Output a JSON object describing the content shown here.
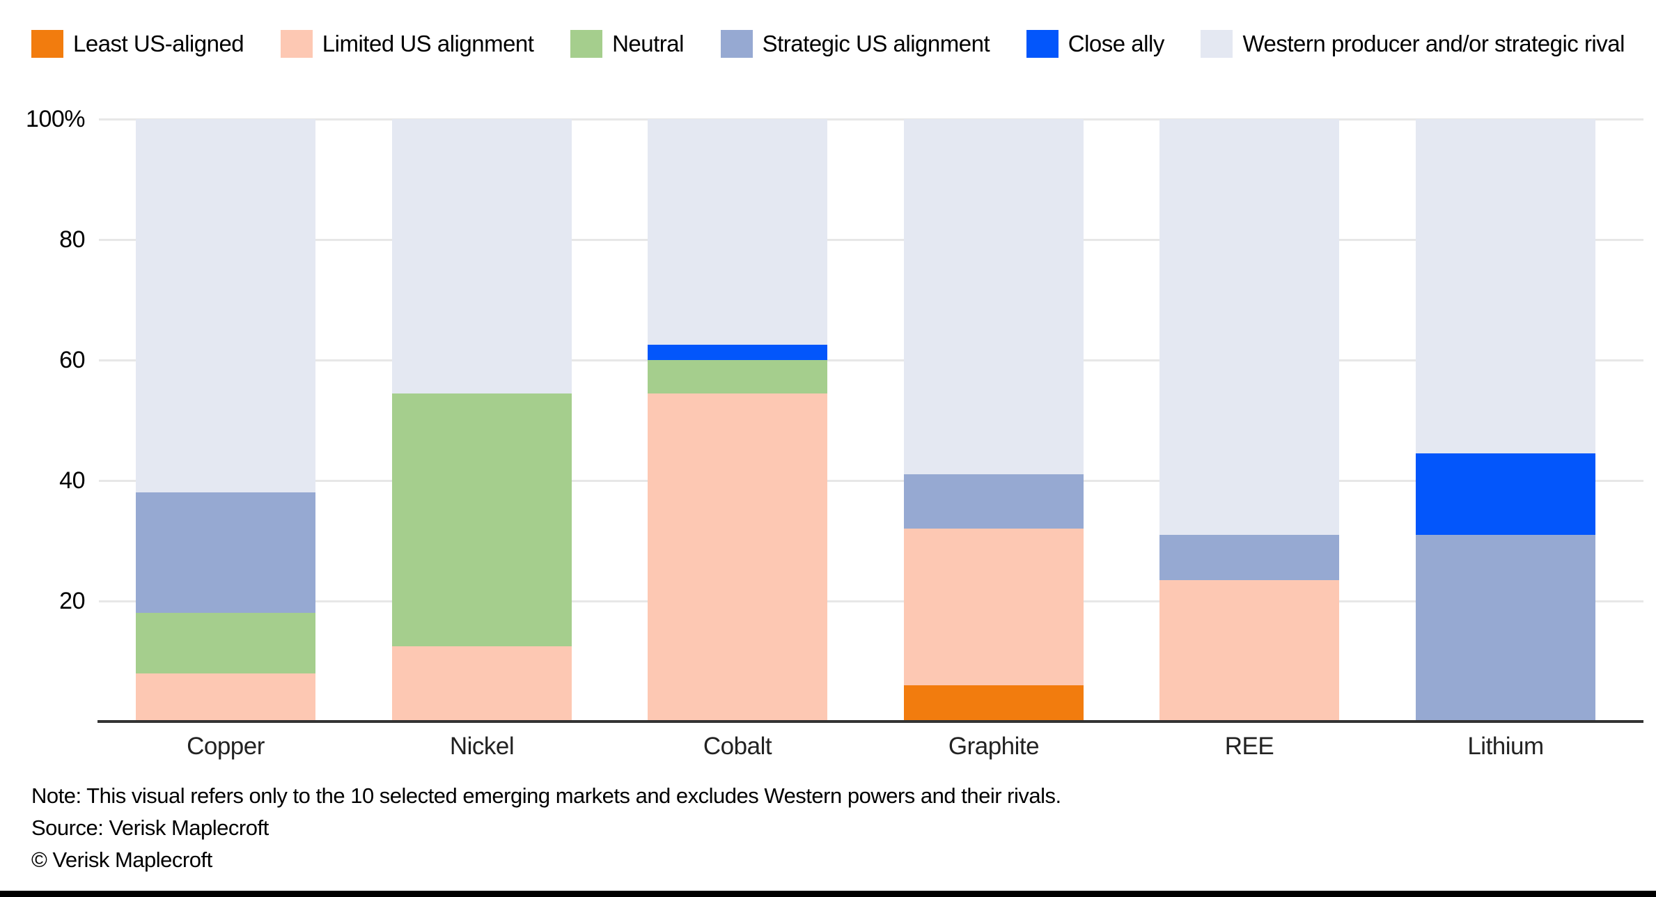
{
  "legend": [
    {
      "label": "Least US-aligned",
      "color": "#F27C0E"
    },
    {
      "label": "Limited US alignment",
      "color": "#FDC8B3"
    },
    {
      "label": "Neutral",
      "color": "#A5CE8D"
    },
    {
      "label": "Strategic US alignment",
      "color": "#96A9D2"
    },
    {
      "label": "Close ally",
      "color": "#0356FB"
    },
    {
      "label": "Western producer and/or strategic rival",
      "color": "#E4E8F2"
    }
  ],
  "chart_data": {
    "type": "bar",
    "stacked": true,
    "unit": "percent",
    "title": "",
    "xlabel": "",
    "ylabel": "",
    "ylim": [
      0,
      100
    ],
    "grid": true,
    "legend_position": "top",
    "categories": [
      "Copper",
      "Nickel",
      "Cobalt",
      "Graphite",
      "REE",
      "Lithium"
    ],
    "series": [
      {
        "name": "Least US-aligned",
        "color": "#F27C0E",
        "values": [
          0,
          0,
          0,
          6,
          0,
          0
        ]
      },
      {
        "name": "Limited US alignment",
        "color": "#FDC8B3",
        "values": [
          8,
          12.5,
          54.5,
          26,
          23.5,
          0
        ]
      },
      {
        "name": "Neutral",
        "color": "#A5CE8D",
        "values": [
          10,
          42,
          5.5,
          0,
          0,
          0
        ]
      },
      {
        "name": "Strategic US alignment",
        "color": "#96A9D2",
        "values": [
          20,
          0,
          0,
          9,
          7.5,
          31
        ]
      },
      {
        "name": "Close ally",
        "color": "#0356FB",
        "values": [
          0,
          0,
          2.5,
          0,
          0,
          13.5
        ]
      },
      {
        "name": "Western producer and/or strategic rival",
        "color": "#E4E8F2",
        "values": [
          62,
          45.5,
          37.5,
          59,
          69,
          55.5
        ]
      }
    ],
    "yticks": [
      {
        "value": 100,
        "label": "100%"
      },
      {
        "value": 80,
        "label": "80"
      },
      {
        "value": 60,
        "label": "60"
      },
      {
        "value": 40,
        "label": "40"
      },
      {
        "value": 20,
        "label": "20"
      }
    ]
  },
  "footer": {
    "note": "Note: This visual refers only to the 10 selected emerging markets and excludes Western powers and their rivals.",
    "source": "Source: Verisk Maplecroft",
    "copyright": "© Verisk Maplecroft"
  }
}
